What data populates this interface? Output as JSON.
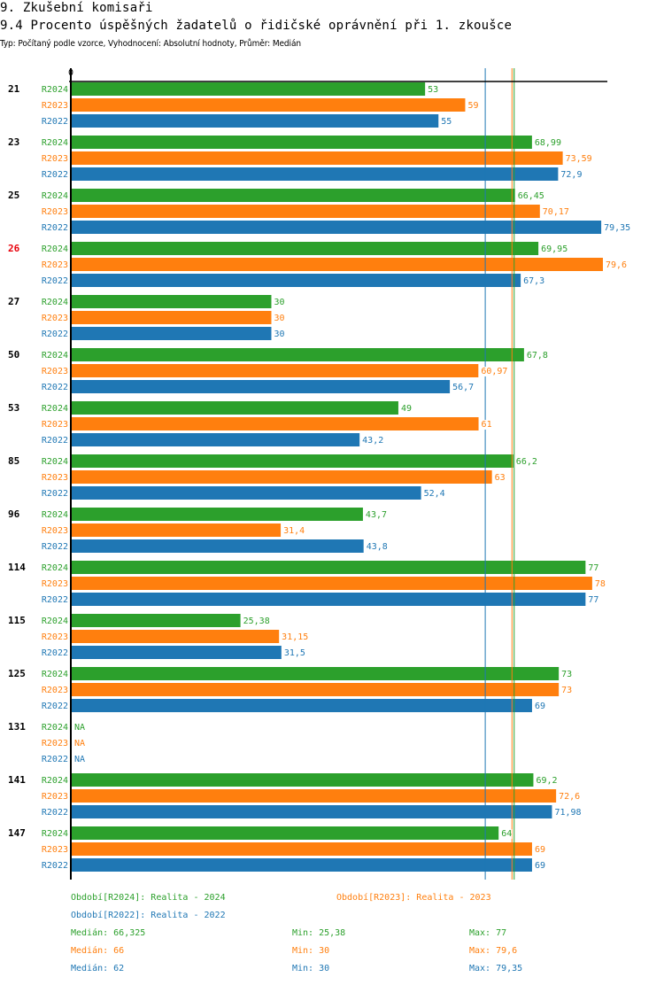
{
  "header": {
    "section_title": "9. Zkušební komisaři",
    "chart_title": "9.4 Procento úspěšných žadatelů o řidičské oprávnění při 1. zkoušce",
    "subtitle": "Typ: Počítaný podle vzorce, Vyhodnocení: Absolutní hodnoty, Průměr: Medián"
  },
  "colors": {
    "R2024": "#2ca02c",
    "R2023": "#ff7f0e",
    "R2022": "#1f77b4",
    "highlight": "#e8000b",
    "axis": "#000000"
  },
  "chart_data": {
    "type": "bar",
    "orientation": "horizontal",
    "title": "9.4 Procento úspěšných žadatelů o řidičské oprávnění při 1. zkoušce",
    "xlabel": "",
    "ylabel": "",
    "x_tick_labels": [
      "0"
    ],
    "xlim": [
      0,
      80
    ],
    "grid": false,
    "categories": [
      "21",
      "23",
      "25",
      "26",
      "27",
      "50",
      "53",
      "85",
      "96",
      "114",
      "115",
      "125",
      "131",
      "141",
      "147"
    ],
    "highlighted_category": "26",
    "series": [
      {
        "name": "R2024",
        "legend": "Období[R2024]: Realita - 2024",
        "values": [
          53,
          68.99,
          66.45,
          69.95,
          30,
          67.8,
          49,
          66.2,
          43.7,
          77,
          25.38,
          73,
          null,
          69.2,
          64
        ],
        "labels": [
          "53",
          "68,99",
          "66,45",
          "69,95",
          "30",
          "67,8",
          "49",
          "66,2",
          "43,7",
          "77",
          "25,38",
          "73",
          "NA",
          "69,2",
          "64"
        ],
        "median": 66.325,
        "median_label": "Medián: 66,325",
        "min_label": "Min: 25,38",
        "max_label": "Max: 77"
      },
      {
        "name": "R2023",
        "legend": "Období[R2023]: Realita - 2023",
        "values": [
          59,
          73.59,
          70.17,
          79.6,
          30,
          60.97,
          61,
          63,
          31.4,
          78,
          31.15,
          73,
          null,
          72.6,
          69
        ],
        "labels": [
          "59",
          "73,59",
          "70,17",
          "79,6",
          "30",
          "60,97",
          "61",
          "63",
          "31,4",
          "78",
          "31,15",
          "73",
          "NA",
          "72,6",
          "69"
        ],
        "median": 66,
        "median_label": "Medián: 66",
        "min_label": "Min: 30",
        "max_label": "Max: 79,6"
      },
      {
        "name": "R2022",
        "legend": "Období[R2022]: Realita - 2022",
        "values": [
          55,
          72.9,
          79.35,
          67.3,
          30,
          56.7,
          43.2,
          52.4,
          43.8,
          77,
          31.5,
          69,
          null,
          71.98,
          69
        ],
        "labels": [
          "55",
          "72,9",
          "79,35",
          "67,3",
          "30",
          "56,7",
          "43,2",
          "52,4",
          "43,8",
          "77",
          "31,5",
          "69",
          "NA",
          "71,98",
          "69"
        ],
        "median": 62,
        "median_label": "Medián: 62",
        "min_label": "Min: 30",
        "max_label": "Max: 79,35"
      }
    ]
  }
}
